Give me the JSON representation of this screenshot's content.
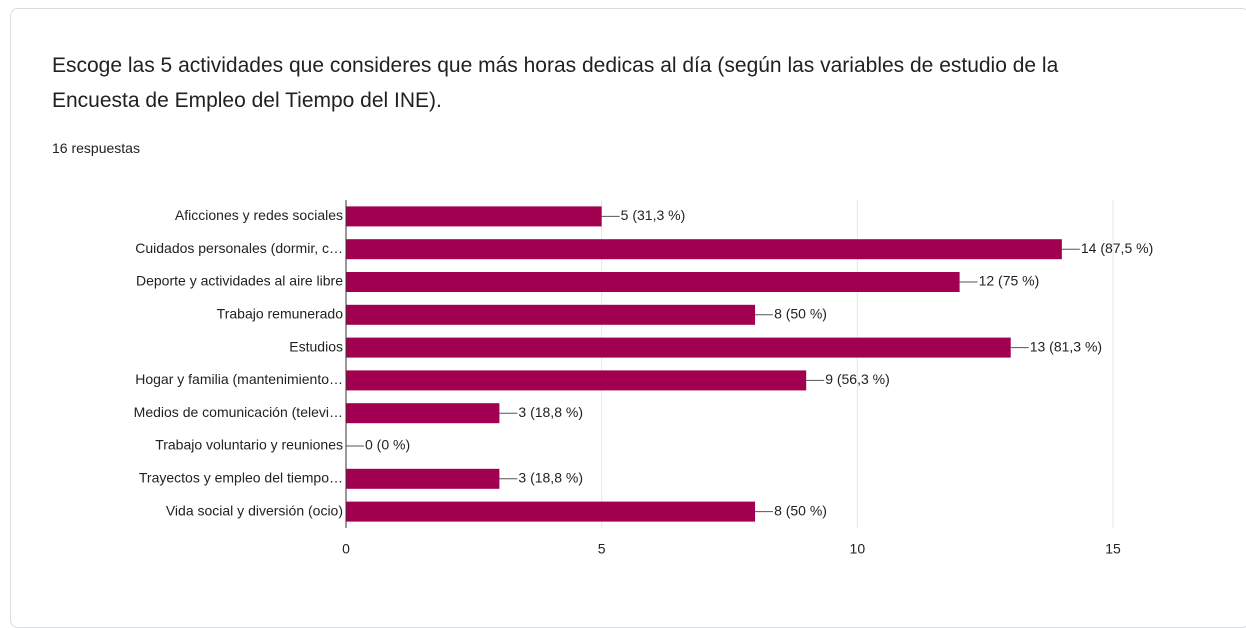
{
  "chart_data": {
    "type": "bar",
    "orientation": "horizontal",
    "title": "Escoge las 5 actividades que consideres que más horas dedicas al día (según las variables de estudio de la Encuesta de Empleo del Tiempo del INE).",
    "subtitle": "16 respuestas",
    "categories": [
      "Aficciones y redes sociales",
      "Cuidados personales (dormir, c…",
      "Deporte y actividades al aire libre",
      "Trabajo remunerado",
      "Estudios",
      "Hogar y familia (mantenimiento…",
      "Medios de comunicación (televi…",
      "Trabajo voluntario y reuniones",
      "Trayectos y empleo del tiempo…",
      "Vida social y diversión (ocio)"
    ],
    "values": [
      5,
      14,
      12,
      8,
      13,
      9,
      3,
      0,
      3,
      8
    ],
    "value_labels": [
      "5 (31,3 %)",
      "14 (87,5 %)",
      "12 (75 %)",
      "8 (50 %)",
      "13 (81,3 %)",
      "9 (56,3 %)",
      "3 (18,8 %)",
      "0 (0 %)",
      "3 (18,8 %)",
      "8 (50 %)"
    ],
    "color": "#a0004f",
    "xlim": [
      0,
      15
    ],
    "xticks": [
      0,
      5,
      10,
      15
    ],
    "grid": true
  }
}
